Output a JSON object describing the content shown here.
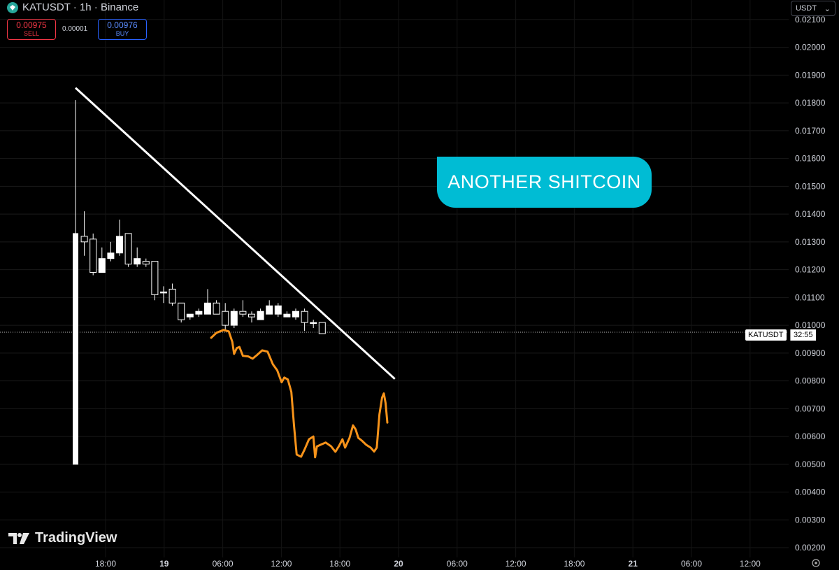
{
  "header": {
    "symbol_line": "KATUSDT · 1h · Binance"
  },
  "trade": {
    "sell_price": "0.00975",
    "sell_label": "SELL",
    "spread": "0.00001",
    "buy_price": "0.00976",
    "buy_label": "BUY"
  },
  "currency": {
    "value": "USDT"
  },
  "annotation": {
    "text": "ANOTHER SHITCOIN"
  },
  "brand": {
    "name": "TradingView"
  },
  "price_tag": {
    "symbol": "KATUSDT",
    "countdown": "32:55"
  },
  "colors": {
    "background": "#000000",
    "candle": "#ffffff",
    "trendline": "#ffffff",
    "projection": "#f7931a",
    "callout": "#00bcd4"
  },
  "chart_data": {
    "type": "candlestick",
    "x_axis_labels": [
      "18:00",
      "19",
      "06:00",
      "12:00",
      "18:00",
      "20",
      "06:00",
      "12:00",
      "18:00",
      "21",
      "06:00",
      "12:00"
    ],
    "y_ticks": [
      "0.00200",
      "0.00300",
      "0.00400",
      "0.00500",
      "0.00600",
      "0.00700",
      "0.00800",
      "0.00900",
      "0.01000",
      "0.01100",
      "0.01200",
      "0.01300",
      "0.01400",
      "0.01500",
      "0.01600",
      "0.01700",
      "0.01800",
      "0.01900",
      "0.02000",
      "0.02100"
    ],
    "ylim": [
      0.00165,
      0.0217
    ],
    "last_price": 0.00975,
    "candles": [
      {
        "o": 0.005,
        "h": 0.0181,
        "l": 0.005,
        "c": 0.0133
      },
      {
        "o": 0.0132,
        "h": 0.0141,
        "l": 0.0125,
        "c": 0.013
      },
      {
        "o": 0.0131,
        "h": 0.0133,
        "l": 0.0118,
        "c": 0.0119
      },
      {
        "o": 0.0119,
        "h": 0.0128,
        "l": 0.0119,
        "c": 0.0124
      },
      {
        "o": 0.0124,
        "h": 0.013,
        "l": 0.0123,
        "c": 0.0126
      },
      {
        "o": 0.0126,
        "h": 0.0138,
        "l": 0.0125,
        "c": 0.0132
      },
      {
        "o": 0.0133,
        "h": 0.0133,
        "l": 0.0121,
        "c": 0.0122
      },
      {
        "o": 0.0122,
        "h": 0.0128,
        "l": 0.0121,
        "c": 0.0124
      },
      {
        "o": 0.0123,
        "h": 0.0124,
        "l": 0.0121,
        "c": 0.0122
      },
      {
        "o": 0.0123,
        "h": 0.0123,
        "l": 0.0109,
        "c": 0.0111
      },
      {
        "o": 0.0112,
        "h": 0.0114,
        "l": 0.0108,
        "c": 0.0112
      },
      {
        "o": 0.0113,
        "h": 0.0115,
        "l": 0.0107,
        "c": 0.0108
      },
      {
        "o": 0.0108,
        "h": 0.0108,
        "l": 0.0101,
        "c": 0.0102
      },
      {
        "o": 0.0103,
        "h": 0.0104,
        "l": 0.0102,
        "c": 0.0104
      },
      {
        "o": 0.0104,
        "h": 0.0106,
        "l": 0.0103,
        "c": 0.0105
      },
      {
        "o": 0.0104,
        "h": 0.0113,
        "l": 0.0104,
        "c": 0.0108
      },
      {
        "o": 0.0108,
        "h": 0.0109,
        "l": 0.0104,
        "c": 0.0104
      },
      {
        "o": 0.0105,
        "h": 0.0108,
        "l": 0.0098,
        "c": 0.01
      },
      {
        "o": 0.01,
        "h": 0.0106,
        "l": 0.0099,
        "c": 0.0105
      },
      {
        "o": 0.0105,
        "h": 0.0109,
        "l": 0.0103,
        "c": 0.0104
      },
      {
        "o": 0.0104,
        "h": 0.0105,
        "l": 0.0101,
        "c": 0.0103
      },
      {
        "o": 0.0102,
        "h": 0.0106,
        "l": 0.0102,
        "c": 0.0105
      },
      {
        "o": 0.0104,
        "h": 0.0109,
        "l": 0.0104,
        "c": 0.0107
      },
      {
        "o": 0.0104,
        "h": 0.0108,
        "l": 0.0103,
        "c": 0.0107
      },
      {
        "o": 0.0103,
        "h": 0.0105,
        "l": 0.0103,
        "c": 0.0104
      },
      {
        "o": 0.0103,
        "h": 0.0106,
        "l": 0.0102,
        "c": 0.0105
      },
      {
        "o": 0.0105,
        "h": 0.0106,
        "l": 0.0098,
        "c": 0.0101
      },
      {
        "o": 0.0101,
        "h": 0.0102,
        "l": 0.0099,
        "c": 0.0101
      },
      {
        "o": 0.0101,
        "h": 0.0101,
        "l": 0.0097,
        "c": 0.0097
      }
    ],
    "trendline": [
      [
        0,
        0.01854
      ],
      [
        36.25,
        0.00807
      ]
    ],
    "projection": [
      [
        15.4,
        0.00955
      ],
      [
        16.0,
        0.00973
      ],
      [
        16.8,
        0.00983
      ],
      [
        17.4,
        0.00978
      ],
      [
        17.8,
        0.0094
      ],
      [
        18.0,
        0.00897
      ],
      [
        18.3,
        0.00918
      ],
      [
        18.6,
        0.00922
      ],
      [
        19.0,
        0.0089
      ],
      [
        19.6,
        0.00888
      ],
      [
        20.1,
        0.0088
      ],
      [
        20.6,
        0.00893
      ],
      [
        21.2,
        0.0091
      ],
      [
        21.8,
        0.00905
      ],
      [
        22.4,
        0.0086
      ],
      [
        22.9,
        0.00838
      ],
      [
        23.4,
        0.00795
      ],
      [
        23.7,
        0.00812
      ],
      [
        24.1,
        0.00805
      ],
      [
        24.5,
        0.0076
      ],
      [
        24.8,
        0.0064
      ],
      [
        25.1,
        0.00535
      ],
      [
        25.6,
        0.00527
      ],
      [
        26.0,
        0.00553
      ],
      [
        26.5,
        0.0059
      ],
      [
        27.0,
        0.006
      ],
      [
        27.2,
        0.00525
      ],
      [
        27.4,
        0.00564
      ],
      [
        27.8,
        0.0057
      ],
      [
        28.4,
        0.00578
      ],
      [
        29.0,
        0.00565
      ],
      [
        29.5,
        0.00545
      ],
      [
        29.9,
        0.00565
      ],
      [
        30.3,
        0.0059
      ],
      [
        30.6,
        0.0056
      ],
      [
        31.1,
        0.00595
      ],
      [
        31.5,
        0.0064
      ],
      [
        31.8,
        0.00625
      ],
      [
        32.1,
        0.00595
      ],
      [
        32.5,
        0.00585
      ],
      [
        33.0,
        0.0057
      ],
      [
        33.5,
        0.0056
      ],
      [
        33.9,
        0.00546
      ],
      [
        34.2,
        0.0056
      ],
      [
        34.5,
        0.0068
      ],
      [
        34.8,
        0.0074
      ],
      [
        35.0,
        0.00755
      ],
      [
        35.2,
        0.0072
      ],
      [
        35.4,
        0.0065
      ]
    ]
  }
}
